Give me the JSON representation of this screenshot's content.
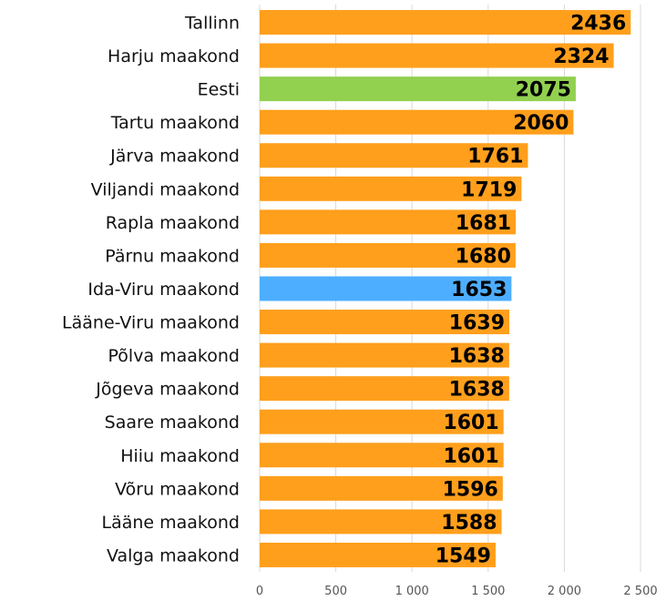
{
  "chart_data": {
    "type": "bar",
    "orientation": "horizontal",
    "title": "",
    "xlabel": "",
    "ylabel": "",
    "xlim": [
      0,
      2500
    ],
    "grid": true,
    "legend": "none",
    "categories": [
      "Tallinn",
      "Harju maakond",
      "Eesti",
      "Tartu maakond",
      "Järva maakond",
      "Viljandi maakond",
      "Rapla maakond",
      "Pärnu maakond",
      "Ida-Viru maakond",
      "Lääne-Viru maakond",
      "Põlva maakond",
      "Jõgeva maakond",
      "Saare maakond",
      "Hiiu maakond",
      "Võru maakond",
      "Lääne maakond",
      "Valga maakond"
    ],
    "values": [
      2436,
      2324,
      2075,
      2060,
      1761,
      1719,
      1681,
      1680,
      1653,
      1639,
      1638,
      1638,
      1601,
      1601,
      1596,
      1588,
      1549
    ],
    "value_labels": [
      "2436",
      "2324",
      "2075",
      "2060",
      "1761",
      "1719",
      "1681",
      "1680",
      "1653",
      "1639",
      "1638",
      "1638",
      "1601",
      "1601",
      "1596",
      "1588",
      "1549"
    ],
    "ticks": [
      0,
      500,
      1000,
      1500,
      2000,
      2500
    ],
    "tick_labels": [
      "0",
      "500",
      "1 000",
      "1 500",
      "2 000",
      "2 500"
    ],
    "colors": {
      "default": "#FF9F1C",
      "Eesti": "#92D050",
      "Ida-Viru maakond": "#4DAEFF",
      "grid": "#D9D9D9"
    }
  }
}
